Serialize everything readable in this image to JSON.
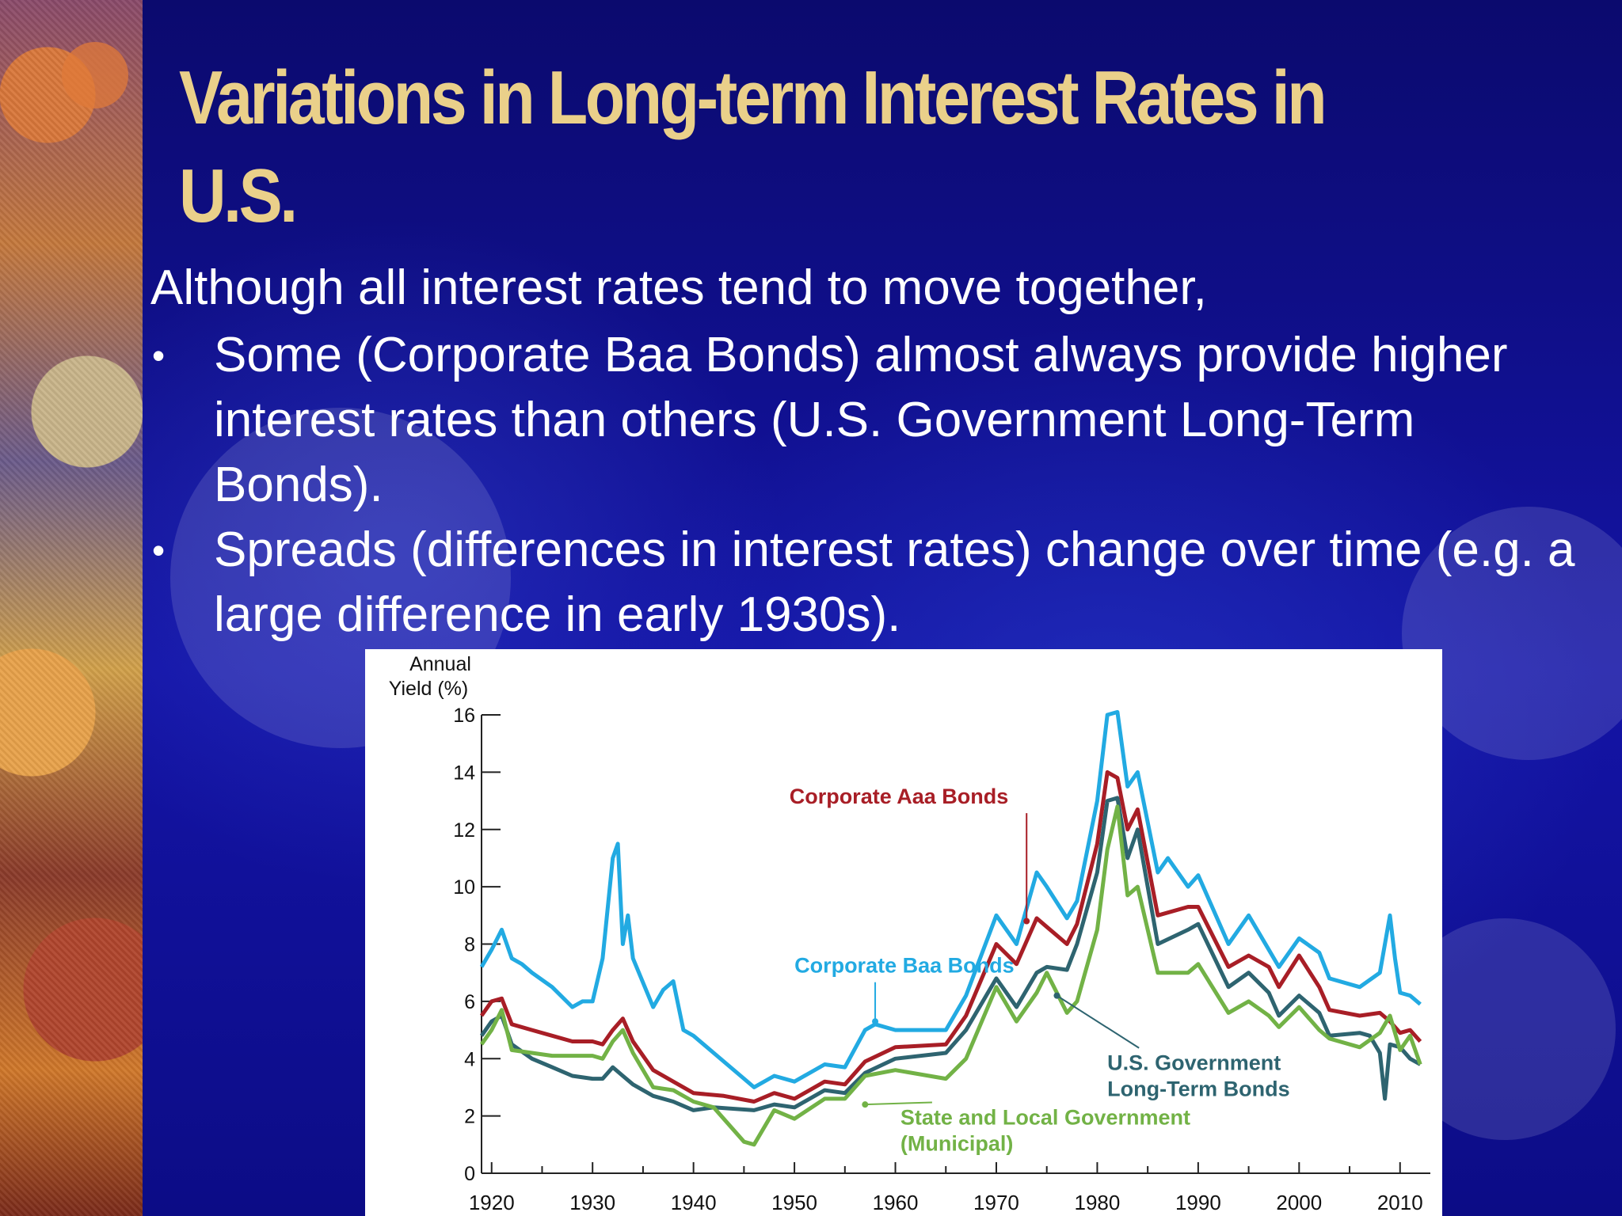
{
  "slide": {
    "title": "Variations in Long-term Interest Rates in U.S.",
    "intro": "Although all interest rates tend to move together,",
    "bullets": [
      "Some (Corporate Baa Bonds) almost always provide higher interest rates than others (U.S. Government Long-Term Bonds).",
      "Spreads (differences in interest rates) change over time (e.g. a large difference in early 1930s)."
    ],
    "bullet_symbol": "•",
    "colors": {
      "background": "#0a0a86",
      "title": "#ead08a",
      "text": "#ffffff"
    }
  },
  "chart_data": {
    "type": "line",
    "title": "",
    "xlabel": "",
    "ylabel": "Annual Yield (%)",
    "xlim": [
      1919,
      2013
    ],
    "ylim": [
      0,
      16
    ],
    "xticks": [
      1920,
      1930,
      1940,
      1950,
      1960,
      1970,
      1980,
      1990,
      2000,
      2010
    ],
    "yticks": [
      0,
      2,
      4,
      6,
      8,
      10,
      12,
      14,
      16
    ],
    "grid": false,
    "series": [
      {
        "name": "Corporate Baa Bonds",
        "color": "#22aae2",
        "label": {
          "text": "Corporate Baa Bonds",
          "x": 1950,
          "y": 7.0,
          "arrow_to": [
            1958,
            5.3
          ]
        },
        "x": [
          1919,
          1920,
          1921,
          1922,
          1923,
          1924,
          1926,
          1928,
          1929,
          1930,
          1931,
          1932,
          1932.5,
          1933,
          1933.5,
          1934,
          1936,
          1937,
          1938,
          1939,
          1940,
          1942,
          1946,
          1948,
          1950,
          1953,
          1955,
          1957,
          1958,
          1960,
          1965,
          1967,
          1970,
          1972,
          1974,
          1975,
          1977,
          1978,
          1980,
          1981,
          1982,
          1983,
          1984,
          1986,
          1987,
          1989,
          1990,
          1993,
          1995,
          1997,
          1998,
          2000,
          2002,
          2003,
          2006,
          2008,
          2009,
          2009.5,
          2010,
          2011,
          2012
        ],
        "values": [
          7.2,
          7.8,
          8.5,
          7.5,
          7.3,
          7.0,
          6.5,
          5.8,
          6.0,
          6.0,
          7.5,
          11.0,
          11.5,
          8.0,
          9.0,
          7.5,
          5.8,
          6.4,
          6.7,
          5.0,
          4.8,
          4.2,
          3.0,
          3.4,
          3.2,
          3.8,
          3.7,
          5.0,
          5.2,
          5.0,
          5.0,
          6.2,
          9.0,
          8.0,
          10.5,
          10.0,
          8.9,
          9.5,
          13.0,
          16.0,
          16.1,
          13.5,
          14.0,
          10.5,
          11.0,
          10.0,
          10.4,
          8.0,
          9.0,
          7.8,
          7.2,
          8.2,
          7.7,
          6.8,
          6.5,
          7.0,
          9.0,
          7.5,
          6.3,
          6.2,
          5.9
        ]
      },
      {
        "name": "Corporate Aaa Bonds",
        "color": "#a81e26",
        "label": {
          "text": "Corporate Aaa Bonds",
          "x": 1949.5,
          "y": 12.9,
          "arrow_to": [
            1973,
            8.8
          ]
        },
        "x": [
          1919,
          1920,
          1921,
          1922,
          1924,
          1926,
          1928,
          1930,
          1931,
          1932,
          1933,
          1934,
          1936,
          1938,
          1940,
          1943,
          1946,
          1948,
          1950,
          1953,
          1955,
          1957,
          1960,
          1965,
          1967,
          1970,
          1972,
          1974,
          1975,
          1977,
          1978,
          1980,
          1981,
          1982,
          1983,
          1984,
          1986,
          1989,
          1990,
          1993,
          1995,
          1997,
          1998,
          2000,
          2002,
          2003,
          2006,
          2008,
          2009,
          2010,
          2011,
          2012
        ],
        "values": [
          5.5,
          6.0,
          6.1,
          5.2,
          5.0,
          4.8,
          4.6,
          4.6,
          4.5,
          5.0,
          5.4,
          4.6,
          3.6,
          3.2,
          2.8,
          2.7,
          2.5,
          2.8,
          2.6,
          3.2,
          3.1,
          3.9,
          4.4,
          4.5,
          5.5,
          8.0,
          7.3,
          8.9,
          8.6,
          8.0,
          8.7,
          11.5,
          14.0,
          13.8,
          12.0,
          12.7,
          9.0,
          9.3,
          9.3,
          7.2,
          7.6,
          7.2,
          6.5,
          7.6,
          6.5,
          5.7,
          5.5,
          5.6,
          5.3,
          4.9,
          5.0,
          4.6
        ]
      },
      {
        "name": "U.S. Government Long-Term Bonds",
        "color": "#2e6470",
        "label": {
          "text": "U.S. Government\nLong-Term Bonds",
          "x": 1981,
          "y": 3.6,
          "arrow_to": [
            1976,
            6.2
          ]
        },
        "x": [
          1919,
          1920,
          1921,
          1922,
          1924,
          1926,
          1928,
          1930,
          1931,
          1932,
          1933,
          1934,
          1936,
          1938,
          1940,
          1942,
          1946,
          1948,
          1950,
          1953,
          1955,
          1957,
          1960,
          1965,
          1967,
          1970,
          1972,
          1974,
          1975,
          1977,
          1978,
          1980,
          1981,
          1982,
          1983,
          1984,
          1986,
          1989,
          1990,
          1993,
          1995,
          1997,
          1998,
          2000,
          2002,
          2003,
          2006,
          2007,
          2008,
          2008.5,
          2009,
          2010,
          2011,
          2012
        ],
        "values": [
          4.8,
          5.3,
          5.5,
          4.5,
          4.0,
          3.7,
          3.4,
          3.3,
          3.3,
          3.7,
          3.4,
          3.1,
          2.7,
          2.5,
          2.2,
          2.3,
          2.2,
          2.4,
          2.3,
          2.9,
          2.8,
          3.5,
          4.0,
          4.2,
          5.0,
          6.8,
          5.8,
          7.0,
          7.2,
          7.1,
          8.0,
          10.5,
          13.0,
          13.1,
          11.0,
          12.0,
          8.0,
          8.5,
          8.7,
          6.5,
          7.0,
          6.3,
          5.5,
          6.2,
          5.6,
          4.8,
          4.9,
          4.8,
          4.2,
          2.6,
          4.5,
          4.4,
          4.0,
          3.8
        ]
      },
      {
        "name": "State and Local Government (Municipal)",
        "color": "#72b246",
        "label": {
          "text": "State and Local Government\n(Municipal)",
          "x": 1960.5,
          "y": 1.7,
          "arrow_to": [
            1957,
            2.4
          ]
        },
        "x": [
          1919,
          1920,
          1921,
          1922,
          1924,
          1926,
          1928,
          1930,
          1931,
          1932,
          1933,
          1934,
          1936,
          1938,
          1940,
          1942,
          1944,
          1945,
          1946,
          1948,
          1950,
          1953,
          1955,
          1957,
          1960,
          1965,
          1967,
          1970,
          1972,
          1974,
          1975,
          1977,
          1978,
          1980,
          1981,
          1982,
          1983,
          1984,
          1986,
          1989,
          1990,
          1993,
          1995,
          1997,
          1998,
          2000,
          2002,
          2003,
          2006,
          2008,
          2009,
          2010,
          2011,
          2012
        ],
        "values": [
          4.5,
          5.0,
          5.7,
          4.3,
          4.2,
          4.1,
          4.1,
          4.1,
          4.0,
          4.6,
          5.0,
          4.2,
          3.0,
          2.9,
          2.5,
          2.3,
          1.5,
          1.1,
          1.0,
          2.2,
          1.9,
          2.6,
          2.6,
          3.4,
          3.6,
          3.3,
          4.0,
          6.5,
          5.3,
          6.3,
          7.0,
          5.6,
          6.0,
          8.5,
          11.3,
          12.8,
          9.7,
          10.0,
          7.0,
          7.0,
          7.3,
          5.6,
          6.0,
          5.5,
          5.1,
          5.8,
          5.0,
          4.7,
          4.4,
          4.9,
          5.5,
          4.3,
          4.8,
          3.8
        ]
      }
    ]
  }
}
